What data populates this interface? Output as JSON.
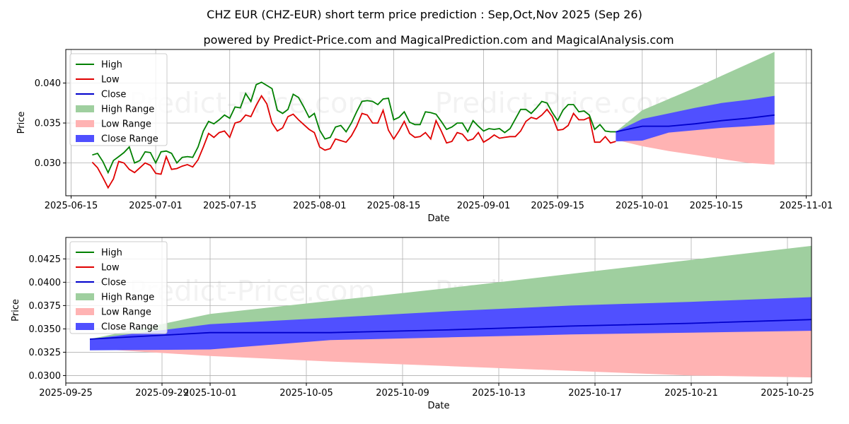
{
  "title": "CHZ EUR (CHZ-EUR) short term price prediction : Sep,Oct,Nov 2025 (Sep 26)",
  "subtitle": "powered by Predict-Price.com and MagicalPrediction.com and MagicalAnalysis.com",
  "watermark": "Predict-Price.com",
  "colors": {
    "high": "#008000",
    "low": "#e00000",
    "close": "#0000cc",
    "high_range": "#9fcf9f",
    "low_range": "#ffb3b3",
    "close_range": "#5050ff"
  },
  "chart_data": [
    {
      "type": "line",
      "xlabel": "Date",
      "ylabel": "Price",
      "grid": true,
      "legend": "top-left",
      "xlim": [
        "2025-06-14",
        "2025-11-02"
      ],
      "ylim": [
        0.0259,
        0.0442
      ],
      "xticks": [
        "2025-06-15",
        "2025-07-01",
        "2025-07-15",
        "2025-08-01",
        "2025-08-15",
        "2025-09-01",
        "2025-09-15",
        "2025-10-01",
        "2025-10-15",
        "2025-11-01"
      ],
      "yticks": [
        "0.030",
        "0.035",
        "0.040"
      ],
      "legend_entries": [
        "High",
        "Low",
        "Close",
        "High Range",
        "Low Range",
        "Close Range"
      ],
      "history_start": "2025-06-19",
      "history_high": [
        0.031,
        0.0312,
        0.0302,
        0.0288,
        0.0303,
        0.0308,
        0.0313,
        0.032,
        0.03,
        0.0303,
        0.0314,
        0.0313,
        0.03,
        0.0314,
        0.0315,
        0.0312,
        0.03,
        0.0307,
        0.0308,
        0.0307,
        0.032,
        0.034,
        0.0352,
        0.0349,
        0.0354,
        0.036,
        0.0356,
        0.037,
        0.0369,
        0.0387,
        0.0377,
        0.0398,
        0.0401,
        0.0397,
        0.0393,
        0.0366,
        0.0362,
        0.0367,
        0.0386,
        0.0382,
        0.037,
        0.0357,
        0.0362,
        0.0341,
        0.033,
        0.0332,
        0.0345,
        0.0347,
        0.0339,
        0.035,
        0.0364,
        0.0377,
        0.0378,
        0.0377,
        0.0373,
        0.038,
        0.0381,
        0.0354,
        0.0357,
        0.0364,
        0.0351,
        0.0348,
        0.0348,
        0.0364,
        0.0363,
        0.0361,
        0.0352,
        0.0342,
        0.0345,
        0.035,
        0.035,
        0.0339,
        0.0353,
        0.0346,
        0.034,
        0.0343,
        0.0342,
        0.0343,
        0.0338,
        0.0343,
        0.0355,
        0.0367,
        0.0367,
        0.0362,
        0.0369,
        0.0377,
        0.0375,
        0.0363,
        0.0353,
        0.0366,
        0.0373,
        0.0373,
        0.0364,
        0.0365,
        0.036,
        0.0342,
        0.0348,
        0.034,
        0.0339,
        0.0339
      ],
      "history_low": [
        0.0301,
        0.0294,
        0.0282,
        0.0269,
        0.028,
        0.0302,
        0.03,
        0.0292,
        0.0288,
        0.0294,
        0.03,
        0.0297,
        0.0287,
        0.0286,
        0.0308,
        0.0292,
        0.0293,
        0.0296,
        0.0298,
        0.0295,
        0.0304,
        0.032,
        0.0337,
        0.0332,
        0.0338,
        0.034,
        0.0332,
        0.035,
        0.0352,
        0.036,
        0.0358,
        0.0372,
        0.0384,
        0.0374,
        0.035,
        0.034,
        0.0344,
        0.0358,
        0.0361,
        0.0354,
        0.0348,
        0.0342,
        0.0338,
        0.032,
        0.0316,
        0.0318,
        0.033,
        0.0328,
        0.0326,
        0.0334,
        0.0346,
        0.0362,
        0.036,
        0.035,
        0.035,
        0.0366,
        0.0341,
        0.033,
        0.034,
        0.0352,
        0.0337,
        0.0332,
        0.0333,
        0.0338,
        0.033,
        0.0353,
        0.034,
        0.0325,
        0.0327,
        0.0338,
        0.0336,
        0.0328,
        0.033,
        0.0338,
        0.0326,
        0.033,
        0.0335,
        0.0331,
        0.0332,
        0.0333,
        0.0333,
        0.034,
        0.0352,
        0.0357,
        0.0355,
        0.036,
        0.0367,
        0.0358,
        0.0341,
        0.0342,
        0.0347,
        0.0362,
        0.0354,
        0.0354,
        0.0357,
        0.0326,
        0.0326,
        0.0333,
        0.0325,
        0.0327
      ]
    },
    {
      "type": "area",
      "xlabel": "Date",
      "ylabel": "Price",
      "grid": true,
      "legend": "top-left",
      "xlim": [
        "2025-09-25",
        "2025-10-26"
      ],
      "ylim": [
        0.0292,
        0.0448
      ],
      "xticks": [
        "2025-09-25",
        "2025-09-29",
        "2025-10-01",
        "2025-10-05",
        "2025-10-09",
        "2025-10-13",
        "2025-10-17",
        "2025-10-21",
        "2025-10-25"
      ],
      "yticks": [
        "0.0300",
        "0.0325",
        "0.0350",
        "0.0375",
        "0.0400",
        "0.0425"
      ],
      "legend_entries": [
        "High",
        "Low",
        "Close",
        "High Range",
        "Low Range",
        "Close Range"
      ]
    }
  ],
  "forecast": {
    "dates": [
      "2025-09-26",
      "2025-10-01",
      "2025-10-06",
      "2025-10-11",
      "2025-10-16",
      "2025-10-21",
      "2025-10-26"
    ],
    "close": [
      0.0339,
      0.0346,
      0.0346,
      0.0349,
      0.0353,
      0.0356,
      0.036
    ],
    "high_range_upper": [
      0.0339,
      0.0366,
      0.038,
      0.0394,
      0.0409,
      0.0424,
      0.0439
    ],
    "close_range_upper": [
      0.0339,
      0.0355,
      0.0362,
      0.0369,
      0.0375,
      0.0379,
      0.0384
    ],
    "close_range_lower": [
      0.0327,
      0.0328,
      0.0338,
      0.0341,
      0.0344,
      0.0346,
      0.0348
    ],
    "low_range_lower": [
      0.0329,
      0.0321,
      0.0315,
      0.031,
      0.0305,
      0.03,
      0.0298
    ]
  }
}
